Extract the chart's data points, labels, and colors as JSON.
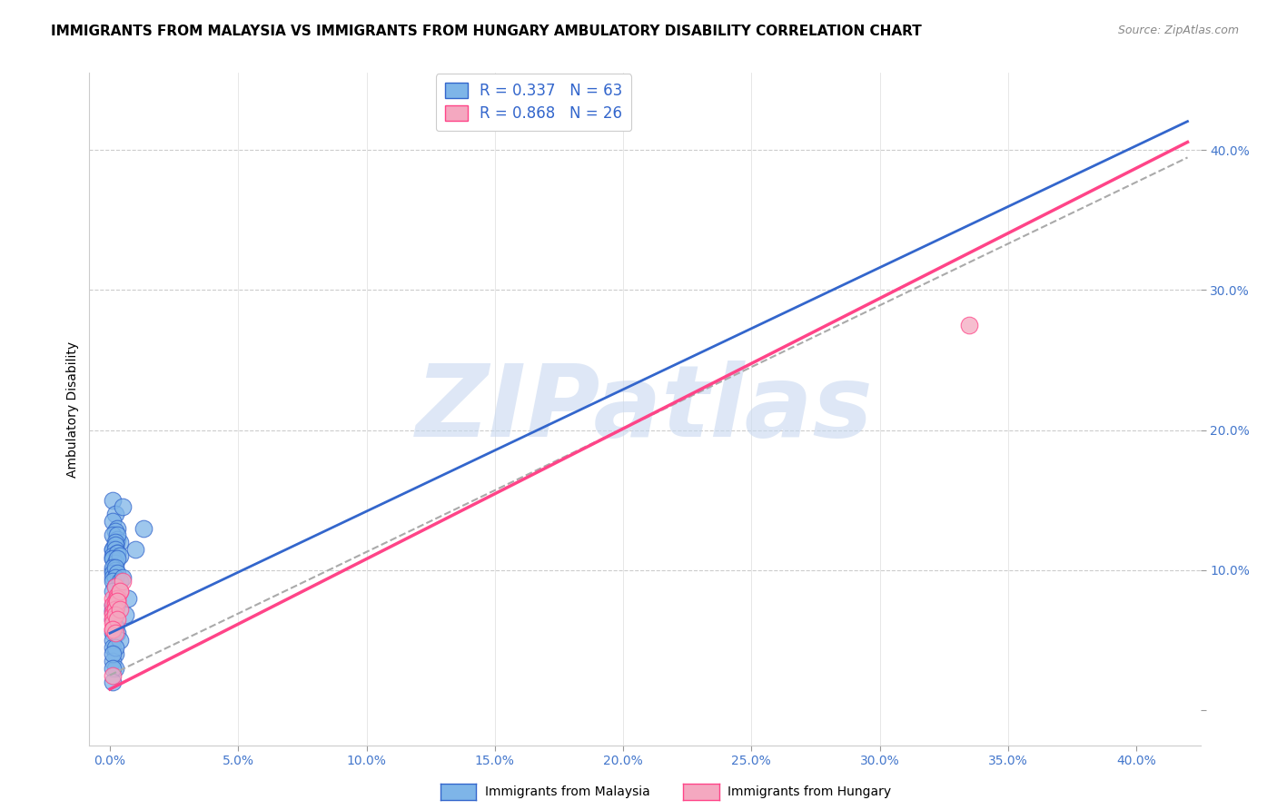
{
  "title": "IMMIGRANTS FROM MALAYSIA VS IMMIGRANTS FROM HUNGARY AMBULATORY DISABILITY CORRELATION CHART",
  "source": "Source: ZipAtlas.com",
  "xlim": [
    -0.008,
    0.425
  ],
  "ylim": [
    -0.025,
    0.455
  ],
  "malaysia_x": [
    0.001,
    0.002,
    0.001,
    0.003,
    0.002,
    0.001,
    0.003,
    0.004,
    0.002,
    0.001,
    0.005,
    0.003,
    0.002,
    0.001,
    0.002,
    0.002,
    0.003,
    0.001,
    0.001,
    0.002,
    0.003,
    0.001,
    0.002,
    0.001,
    0.004,
    0.003,
    0.001,
    0.002,
    0.001,
    0.001,
    0.002,
    0.003,
    0.002,
    0.001,
    0.002,
    0.004,
    0.001,
    0.003,
    0.002,
    0.001,
    0.001,
    0.001,
    0.001,
    0.002,
    0.001,
    0.001,
    0.001,
    0.002,
    0.001,
    0.002,
    0.013,
    0.01,
    0.005,
    0.007,
    0.003,
    0.006,
    0.002,
    0.003,
    0.004,
    0.002,
    0.001,
    0.001,
    0.001
  ],
  "malaysia_y": [
    0.15,
    0.14,
    0.135,
    0.13,
    0.128,
    0.125,
    0.122,
    0.12,
    0.118,
    0.115,
    0.145,
    0.125,
    0.12,
    0.115,
    0.118,
    0.115,
    0.112,
    0.11,
    0.108,
    0.105,
    0.112,
    0.108,
    0.105,
    0.1,
    0.11,
    0.108,
    0.102,
    0.1,
    0.098,
    0.095,
    0.102,
    0.098,
    0.095,
    0.092,
    0.088,
    0.092,
    0.085,
    0.082,
    0.078,
    0.075,
    0.072,
    0.07,
    0.065,
    0.06,
    0.055,
    0.05,
    0.045,
    0.04,
    0.035,
    0.03,
    0.13,
    0.115,
    0.095,
    0.08,
    0.075,
    0.068,
    0.06,
    0.055,
    0.05,
    0.045,
    0.04,
    0.03,
    0.02
  ],
  "hungary_x": [
    0.001,
    0.002,
    0.001,
    0.003,
    0.002,
    0.001,
    0.004,
    0.003,
    0.002,
    0.001,
    0.005,
    0.003,
    0.002,
    0.004,
    0.002,
    0.001,
    0.003,
    0.001,
    0.002,
    0.001,
    0.004,
    0.003,
    0.001,
    0.002,
    0.335,
    0.001
  ],
  "hungary_y": [
    0.08,
    0.088,
    0.075,
    0.082,
    0.078,
    0.07,
    0.085,
    0.08,
    0.075,
    0.068,
    0.092,
    0.078,
    0.072,
    0.085,
    0.072,
    0.065,
    0.078,
    0.062,
    0.068,
    0.058,
    0.072,
    0.065,
    0.058,
    0.055,
    0.275,
    0.025
  ],
  "malaysia_line_slope": 0.87,
  "malaysia_line_intercept": 0.055,
  "hungary_line_slope": 0.93,
  "hungary_line_intercept": 0.015,
  "dashed_line_slope": 0.88,
  "dashed_line_intercept": 0.025,
  "malaysia_color": "#7EB5E8",
  "hungary_color": "#F4A8C0",
  "malaysia_line_color": "#3366CC",
  "hungary_line_color": "#FF4488",
  "dashed_line_color": "#AAAAAA",
  "R_malaysia": 0.337,
  "N_malaysia": 63,
  "R_hungary": 0.868,
  "N_hungary": 26,
  "legend_text_color": "#3366CC",
  "watermark_text": "ZIPatlas",
  "watermark_color": "#C8D8F0",
  "background_color": "#FFFFFF",
  "title_fontsize": 11,
  "source_fontsize": 9,
  "tick_label_color": "#4477CC",
  "tick_label_fontsize": 10
}
